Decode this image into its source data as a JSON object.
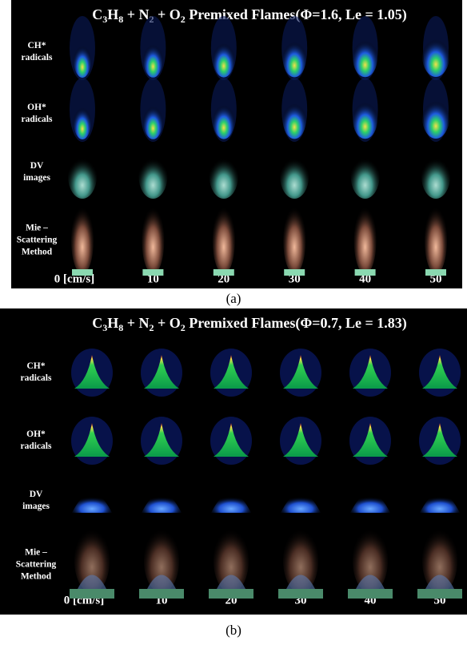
{
  "panels": [
    {
      "title": [
        "C",
        "3",
        "H",
        "8",
        " + N",
        "2",
        " + O",
        "2",
        " Premixed Flames(Φ=1.6, Le = 1.05)"
      ],
      "rows": [
        [
          "CH*",
          "radicals"
        ],
        [
          "OH*",
          "radicals"
        ],
        [
          "DV",
          "images"
        ],
        [
          "Mie –",
          "Scattering",
          "Method"
        ]
      ],
      "columns": [
        "0 [cm/s]",
        "10",
        "20",
        "30",
        "40",
        "50"
      ],
      "caption": "(a)"
    },
    {
      "title": [
        "C",
        "3",
        "H",
        "8",
        " + N",
        "2",
        " + O",
        "2",
        " Premixed Flames(Φ=0.7, Le = 1.83)"
      ],
      "rows": [
        [
          "CH*",
          "radicals"
        ],
        [
          "OH*",
          "radicals"
        ],
        [
          "DV",
          "images"
        ],
        [
          "Mie –",
          "Scattering",
          "Method"
        ]
      ],
      "columns": [
        "0 [cm/s]",
        "10",
        "20",
        "30",
        "40",
        "50"
      ],
      "caption": "(b)"
    }
  ]
}
